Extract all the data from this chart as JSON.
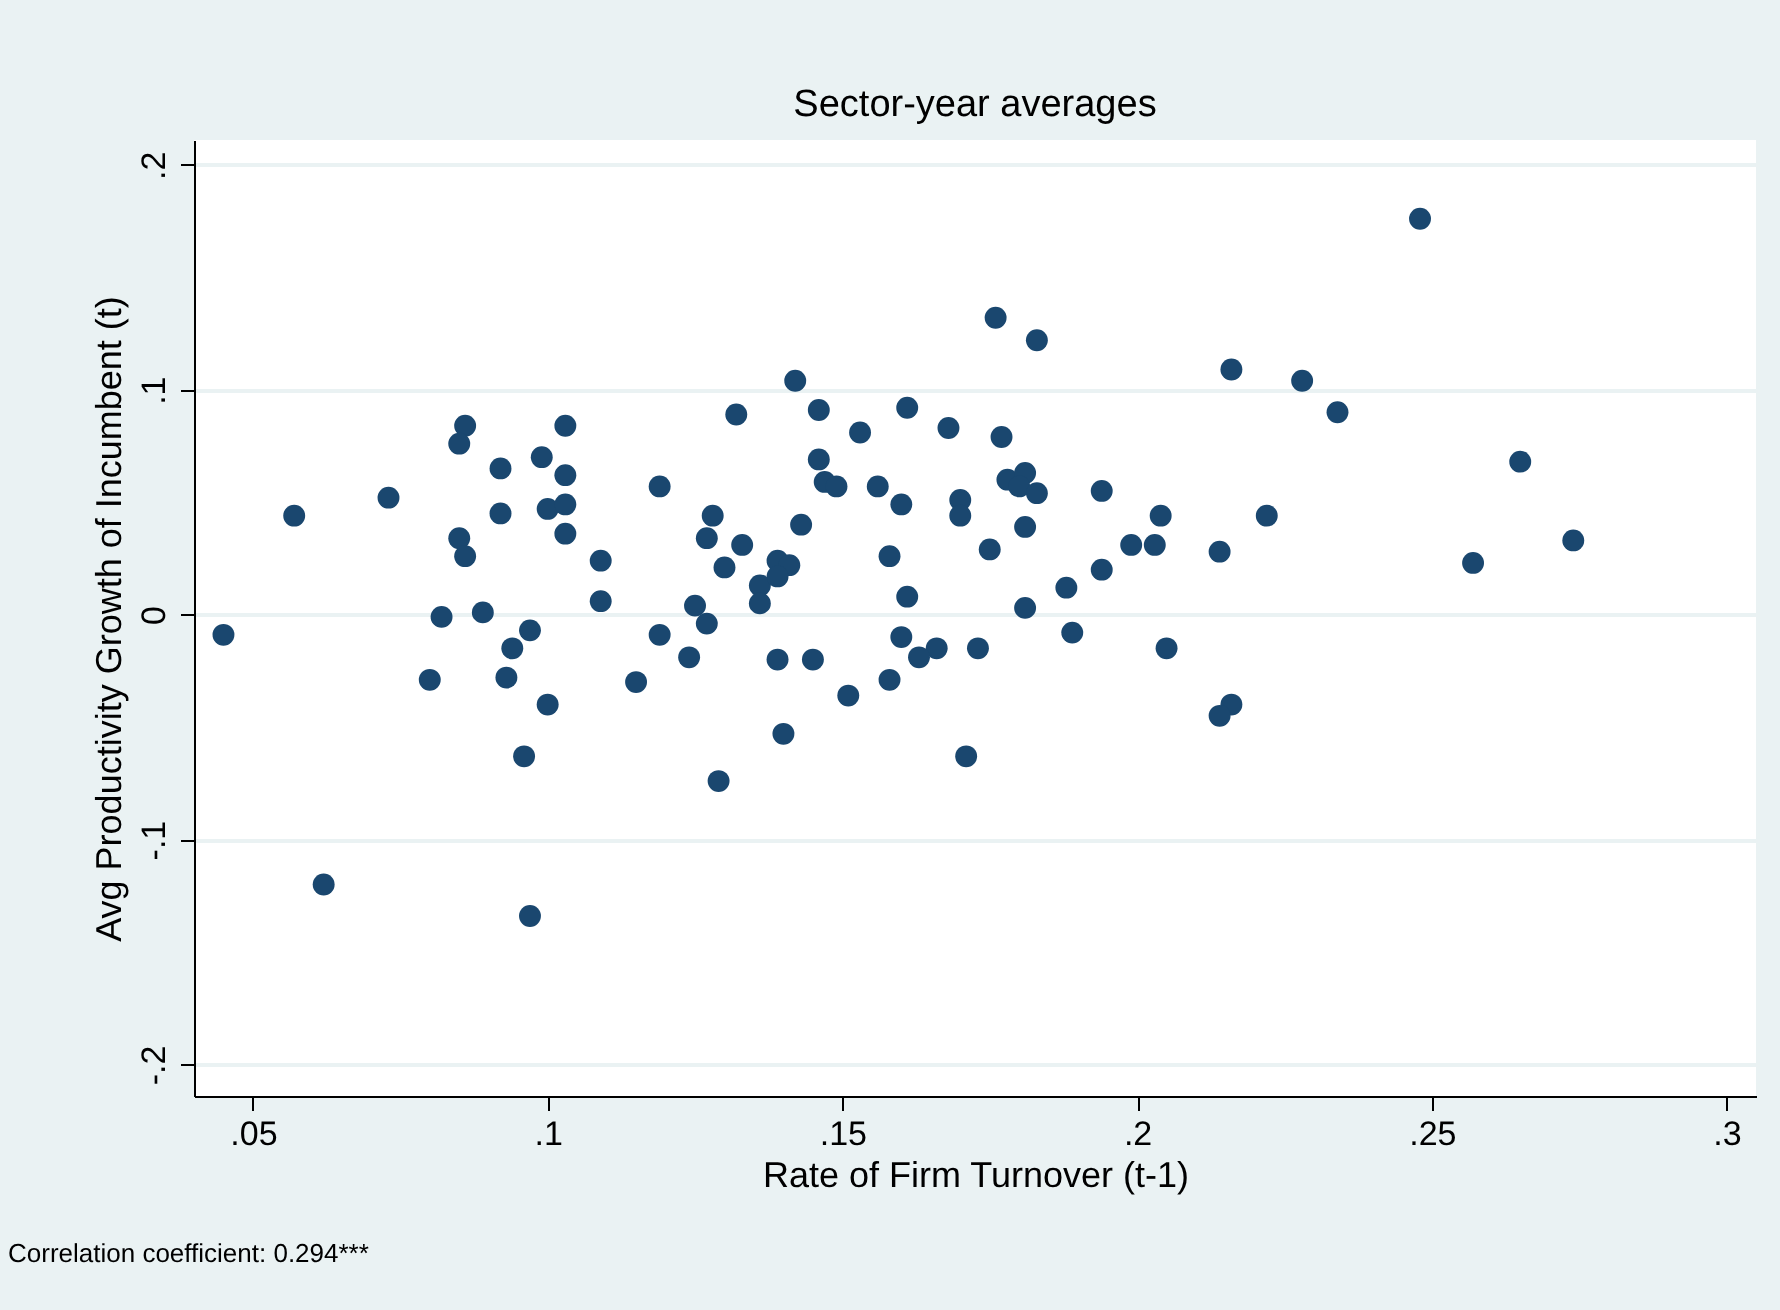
{
  "chart_data": {
    "type": "scatter",
    "title": "Sector-year averages",
    "xlabel": "Rate of Firm Turnover (t-1)",
    "ylabel": "Avg Productivity Growth of Incumbent (t)",
    "annotations": [
      "Correlation coefficient: 0.294***"
    ],
    "xlim": [
      0.04,
      0.305
    ],
    "ylim": [
      -0.214,
      0.211
    ],
    "xticks": [
      {
        "value": 0.05,
        "label": ".05"
      },
      {
        "value": 0.1,
        "label": ".1"
      },
      {
        "value": 0.15,
        "label": ".15"
      },
      {
        "value": 0.2,
        "label": ".2"
      },
      {
        "value": 0.25,
        "label": ".25"
      },
      {
        "value": 0.3,
        "label": ".3"
      }
    ],
    "yticks": [
      {
        "value": -0.2,
        "label": "-.2"
      },
      {
        "value": -0.1,
        "label": "-.1"
      },
      {
        "value": 0,
        "label": "0"
      },
      {
        "value": 0.1,
        "label": ".1"
      },
      {
        "value": 0.2,
        "label": ".2"
      }
    ],
    "grid": "y",
    "marker": "circle",
    "series": [
      {
        "color": "#1a476f",
        "x": [
          0.045,
          0.057,
          0.062,
          0.073,
          0.086,
          0.085,
          0.092,
          0.099,
          0.103,
          0.103,
          0.092,
          0.1,
          0.103,
          0.103,
          0.085,
          0.086,
          0.119,
          0.109,
          0.109,
          0.082,
          0.089,
          0.097,
          0.094,
          0.08,
          0.093,
          0.1,
          0.115,
          0.119,
          0.124,
          0.125,
          0.096,
          0.097,
          0.132,
          0.142,
          0.146,
          0.146,
          0.147,
          0.149,
          0.153,
          0.156,
          0.16,
          0.161,
          0.168,
          0.176,
          0.183,
          0.177,
          0.178,
          0.181,
          0.18,
          0.183,
          0.17,
          0.17,
          0.181,
          0.194,
          0.204,
          0.199,
          0.203,
          0.194,
          0.188,
          0.175,
          0.158,
          0.161,
          0.181,
          0.189,
          0.205,
          0.173,
          0.166,
          0.163,
          0.16,
          0.158,
          0.151,
          0.145,
          0.139,
          0.14,
          0.129,
          0.171,
          0.128,
          0.127,
          0.133,
          0.13,
          0.143,
          0.139,
          0.141,
          0.136,
          0.139,
          0.136,
          0.127,
          0.248,
          0.216,
          0.228,
          0.234,
          0.265,
          0.222,
          0.214,
          0.257,
          0.274,
          0.216,
          0.214
        ],
        "values": [
          -0.009,
          0.044,
          -0.12,
          0.052,
          0.084,
          0.076,
          0.065,
          0.07,
          0.084,
          0.062,
          0.045,
          0.047,
          0.049,
          0.036,
          0.034,
          0.026,
          0.057,
          0.024,
          0.006,
          -0.001,
          0.001,
          -0.007,
          -0.015,
          -0.029,
          -0.028,
          -0.04,
          -0.03,
          -0.009,
          -0.019,
          0.004,
          -0.063,
          -0.134,
          0.089,
          0.104,
          0.091,
          0.069,
          0.059,
          0.057,
          0.081,
          0.057,
          0.049,
          0.092,
          0.083,
          0.132,
          0.122,
          0.079,
          0.06,
          0.063,
          0.057,
          0.054,
          0.051,
          0.044,
          0.039,
          0.055,
          0.044,
          0.031,
          0.031,
          0.02,
          0.012,
          0.029,
          0.026,
          0.008,
          0.003,
          -0.008,
          -0.015,
          -0.015,
          -0.015,
          -0.019,
          -0.01,
          -0.029,
          -0.036,
          -0.02,
          -0.02,
          -0.053,
          -0.074,
          -0.063,
          0.044,
          0.034,
          0.031,
          0.021,
          0.04,
          0.024,
          0.022,
          0.013,
          0.017,
          0.005,
          -0.004,
          0.176,
          0.109,
          0.104,
          0.09,
          0.068,
          0.044,
          0.028,
          0.023,
          0.033,
          -0.04,
          -0.045
        ]
      }
    ]
  }
}
